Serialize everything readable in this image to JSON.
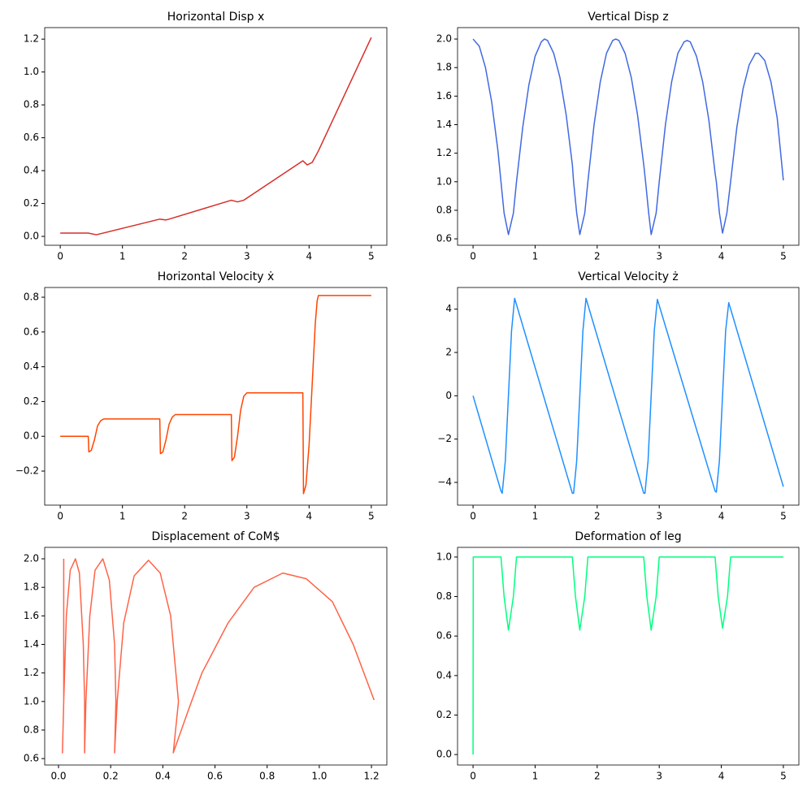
{
  "chart_data": [
    {
      "type": "line",
      "title": "Horizontal Disp x",
      "color": "#d62f2a",
      "x": [
        0,
        0.45,
        0.58,
        1.6,
        1.7,
        1.75,
        2.75,
        2.85,
        2.95,
        3.9,
        3.97,
        4.05,
        4.15,
        5.0
      ],
      "values": [
        0.02,
        0.02,
        0.01,
        0.105,
        0.1,
        0.105,
        0.22,
        0.21,
        0.22,
        0.46,
        0.435,
        0.45,
        0.52,
        1.21
      ],
      "xlim": [
        -0.25,
        5.25
      ],
      "ylim": [
        -0.054,
        1.27
      ],
      "xticks": [
        0,
        1,
        2,
        3,
        4,
        5
      ],
      "yticks": [
        {
          "value": 0,
          "label": "0.0"
        },
        0.2,
        0.4,
        0.6,
        0.8,
        {
          "value": 1,
          "label": "1.0"
        },
        1.2
      ]
    },
    {
      "type": "line",
      "title": "Vertical Disp z",
      "color": "#4169e1",
      "x": [
        0,
        0.1,
        0.2,
        0.3,
        0.4,
        0.45,
        0.5,
        0.57,
        0.65,
        0.7,
        0.8,
        0.9,
        1.0,
        1.1,
        1.15,
        1.2,
        1.3,
        1.4,
        1.5,
        1.6,
        1.62,
        1.67,
        1.72,
        1.8,
        1.85,
        1.95,
        2.05,
        2.15,
        2.25,
        2.3,
        2.35,
        2.45,
        2.55,
        2.65,
        2.75,
        2.78,
        2.83,
        2.87,
        2.95,
        3.0,
        3.1,
        3.2,
        3.3,
        3.4,
        3.45,
        3.5,
        3.6,
        3.7,
        3.8,
        3.9,
        3.92,
        3.97,
        4.02,
        4.09,
        4.15,
        4.25,
        4.35,
        4.45,
        4.55,
        4.6,
        4.7,
        4.8,
        4.9,
        5.0
      ],
      "values": [
        2.0,
        1.95,
        1.8,
        1.56,
        1.22,
        1.0,
        0.78,
        0.63,
        0.78,
        1.0,
        1.38,
        1.68,
        1.88,
        1.98,
        2.0,
        1.99,
        1.9,
        1.73,
        1.47,
        1.12,
        1.0,
        0.78,
        0.63,
        0.78,
        1.0,
        1.4,
        1.7,
        1.9,
        1.99,
        2.0,
        1.99,
        1.9,
        1.73,
        1.47,
        1.12,
        1.0,
        0.78,
        0.63,
        0.78,
        1.0,
        1.4,
        1.7,
        1.9,
        1.98,
        1.99,
        1.98,
        1.88,
        1.7,
        1.43,
        1.06,
        1.0,
        0.78,
        0.64,
        0.78,
        1.0,
        1.38,
        1.65,
        1.82,
        1.9,
        1.9,
        1.85,
        1.7,
        1.45,
        1.01
      ],
      "xlim": [
        -0.25,
        5.25
      ],
      "ylim": [
        0.555,
        2.08
      ],
      "xticks": [
        0,
        1,
        2,
        3,
        4,
        5
      ],
      "yticks": [
        0.6,
        0.8,
        {
          "value": 1,
          "label": "1.0"
        },
        1.2,
        1.4,
        1.6,
        1.8,
        {
          "value": 2,
          "label": "2.0"
        }
      ]
    },
    {
      "type": "line",
      "title": "Horizontal Velocity ẋ",
      "color": "#ff4500",
      "x": [
        0,
        0.45,
        0.46,
        0.5,
        0.55,
        0.6,
        0.65,
        0.7,
        1.6,
        1.61,
        1.65,
        1.7,
        1.75,
        1.8,
        1.85,
        2.75,
        2.76,
        2.8,
        2.85,
        2.9,
        2.95,
        3.0,
        3.9,
        3.91,
        3.95,
        4.0,
        4.05,
        4.1,
        4.13,
        4.15,
        5.0
      ],
      "values": [
        0,
        0,
        -0.09,
        -0.08,
        -0.02,
        0.06,
        0.09,
        0.1,
        0.1,
        -0.1,
        -0.09,
        -0.02,
        0.07,
        0.11,
        0.125,
        0.125,
        -0.14,
        -0.12,
        0.0,
        0.15,
        0.23,
        0.25,
        0.25,
        -0.33,
        -0.28,
        -0.05,
        0.3,
        0.65,
        0.78,
        0.81,
        0.81
      ],
      "xlim": [
        -0.25,
        5.25
      ],
      "ylim": [
        -0.396,
        0.856
      ],
      "xticks": [
        0,
        1,
        2,
        3,
        4,
        5
      ],
      "yticks": [
        {
          "value": -0.2,
          "label": "−0.2"
        },
        {
          "value": 0,
          "label": "0.0"
        },
        0.2,
        0.4,
        0.6,
        0.8
      ]
    },
    {
      "type": "line",
      "title": "Vertical Velocity ż",
      "color": "#1e90ff",
      "x": [
        0,
        0.45,
        0.47,
        0.52,
        0.57,
        0.62,
        0.67,
        1.6,
        1.62,
        1.67,
        1.72,
        1.77,
        1.82,
        2.75,
        2.77,
        2.82,
        2.87,
        2.92,
        2.97,
        3.9,
        3.92,
        3.97,
        4.02,
        4.07,
        4.12,
        5.0
      ],
      "values": [
        0,
        -4.4,
        -4.5,
        -3,
        0,
        3,
        4.5,
        -4.5,
        -4.5,
        -3,
        0,
        3,
        4.5,
        -4.5,
        -4.5,
        -3,
        0,
        3,
        4.45,
        -4.4,
        -4.45,
        -3,
        0,
        3,
        4.3,
        -4.2
      ],
      "xlim": [
        -0.25,
        5.25
      ],
      "ylim": [
        -5.05,
        5.0
      ],
      "xticks": [
        0,
        1,
        2,
        3,
        4,
        5
      ],
      "yticks": [
        {
          "value": -4,
          "label": "−4"
        },
        {
          "value": -2,
          "label": "−2"
        },
        0,
        2,
        4
      ]
    },
    {
      "type": "line",
      "title": "Displacement of CoM$",
      "color": "#ff6347",
      "x": [
        0.02,
        0.02,
        0.015,
        0.02,
        0.03,
        0.045,
        0.065,
        0.08,
        0.095,
        0.1,
        0.1,
        0.105,
        0.12,
        0.14,
        0.17,
        0.195,
        0.215,
        0.22,
        0.215,
        0.225,
        0.25,
        0.29,
        0.345,
        0.39,
        0.43,
        0.46,
        0.44,
        0.5,
        0.55,
        0.65,
        0.75,
        0.86,
        0.95,
        1.05,
        1.13,
        1.21
      ],
      "values": [
        2.0,
        1.0,
        0.64,
        1.0,
        1.6,
        1.92,
        2.0,
        1.9,
        1.4,
        1.0,
        0.64,
        1.0,
        1.6,
        1.92,
        2.0,
        1.85,
        1.4,
        1.0,
        0.64,
        1.0,
        1.55,
        1.88,
        1.99,
        1.9,
        1.6,
        1.0,
        0.64,
        0.95,
        1.2,
        1.55,
        1.8,
        1.9,
        1.86,
        1.7,
        1.4,
        1.01
      ],
      "xlim": [
        -0.053,
        1.259
      ],
      "ylim": [
        0.555,
        2.08
      ],
      "xticks": [
        {
          "value": 0,
          "label": "0.0"
        },
        0.2,
        0.4,
        0.6,
        0.8,
        {
          "value": 1,
          "label": "1.0"
        },
        1.2
      ],
      "yticks": [
        0.6,
        0.8,
        {
          "value": 1,
          "label": "1.0"
        },
        1.2,
        1.4,
        1.6,
        1.8,
        {
          "value": 2,
          "label": "2.0"
        }
      ]
    },
    {
      "type": "line",
      "title": "Deformation of leg",
      "color": "#00ff7f",
      "x": [
        0,
        0.003,
        0.45,
        0.5,
        0.57,
        0.65,
        0.7,
        1.6,
        1.65,
        1.72,
        1.8,
        1.85,
        2.75,
        2.8,
        2.87,
        2.95,
        3.0,
        3.9,
        3.95,
        4.02,
        4.1,
        4.15,
        5.0
      ],
      "values": [
        0,
        1,
        1,
        0.8,
        0.63,
        0.8,
        1,
        1,
        0.8,
        0.63,
        0.8,
        1,
        1,
        0.8,
        0.63,
        0.8,
        1,
        1,
        0.8,
        0.64,
        0.8,
        1,
        1
      ],
      "xlim": [
        -0.25,
        5.25
      ],
      "ylim": [
        -0.053,
        1.049
      ],
      "xticks": [
        0,
        1,
        2,
        3,
        4,
        5
      ],
      "yticks": [
        {
          "value": 0,
          "label": "0.0"
        },
        0.2,
        0.4,
        0.6,
        0.8,
        {
          "value": 1,
          "label": "1.0"
        }
      ]
    }
  ]
}
